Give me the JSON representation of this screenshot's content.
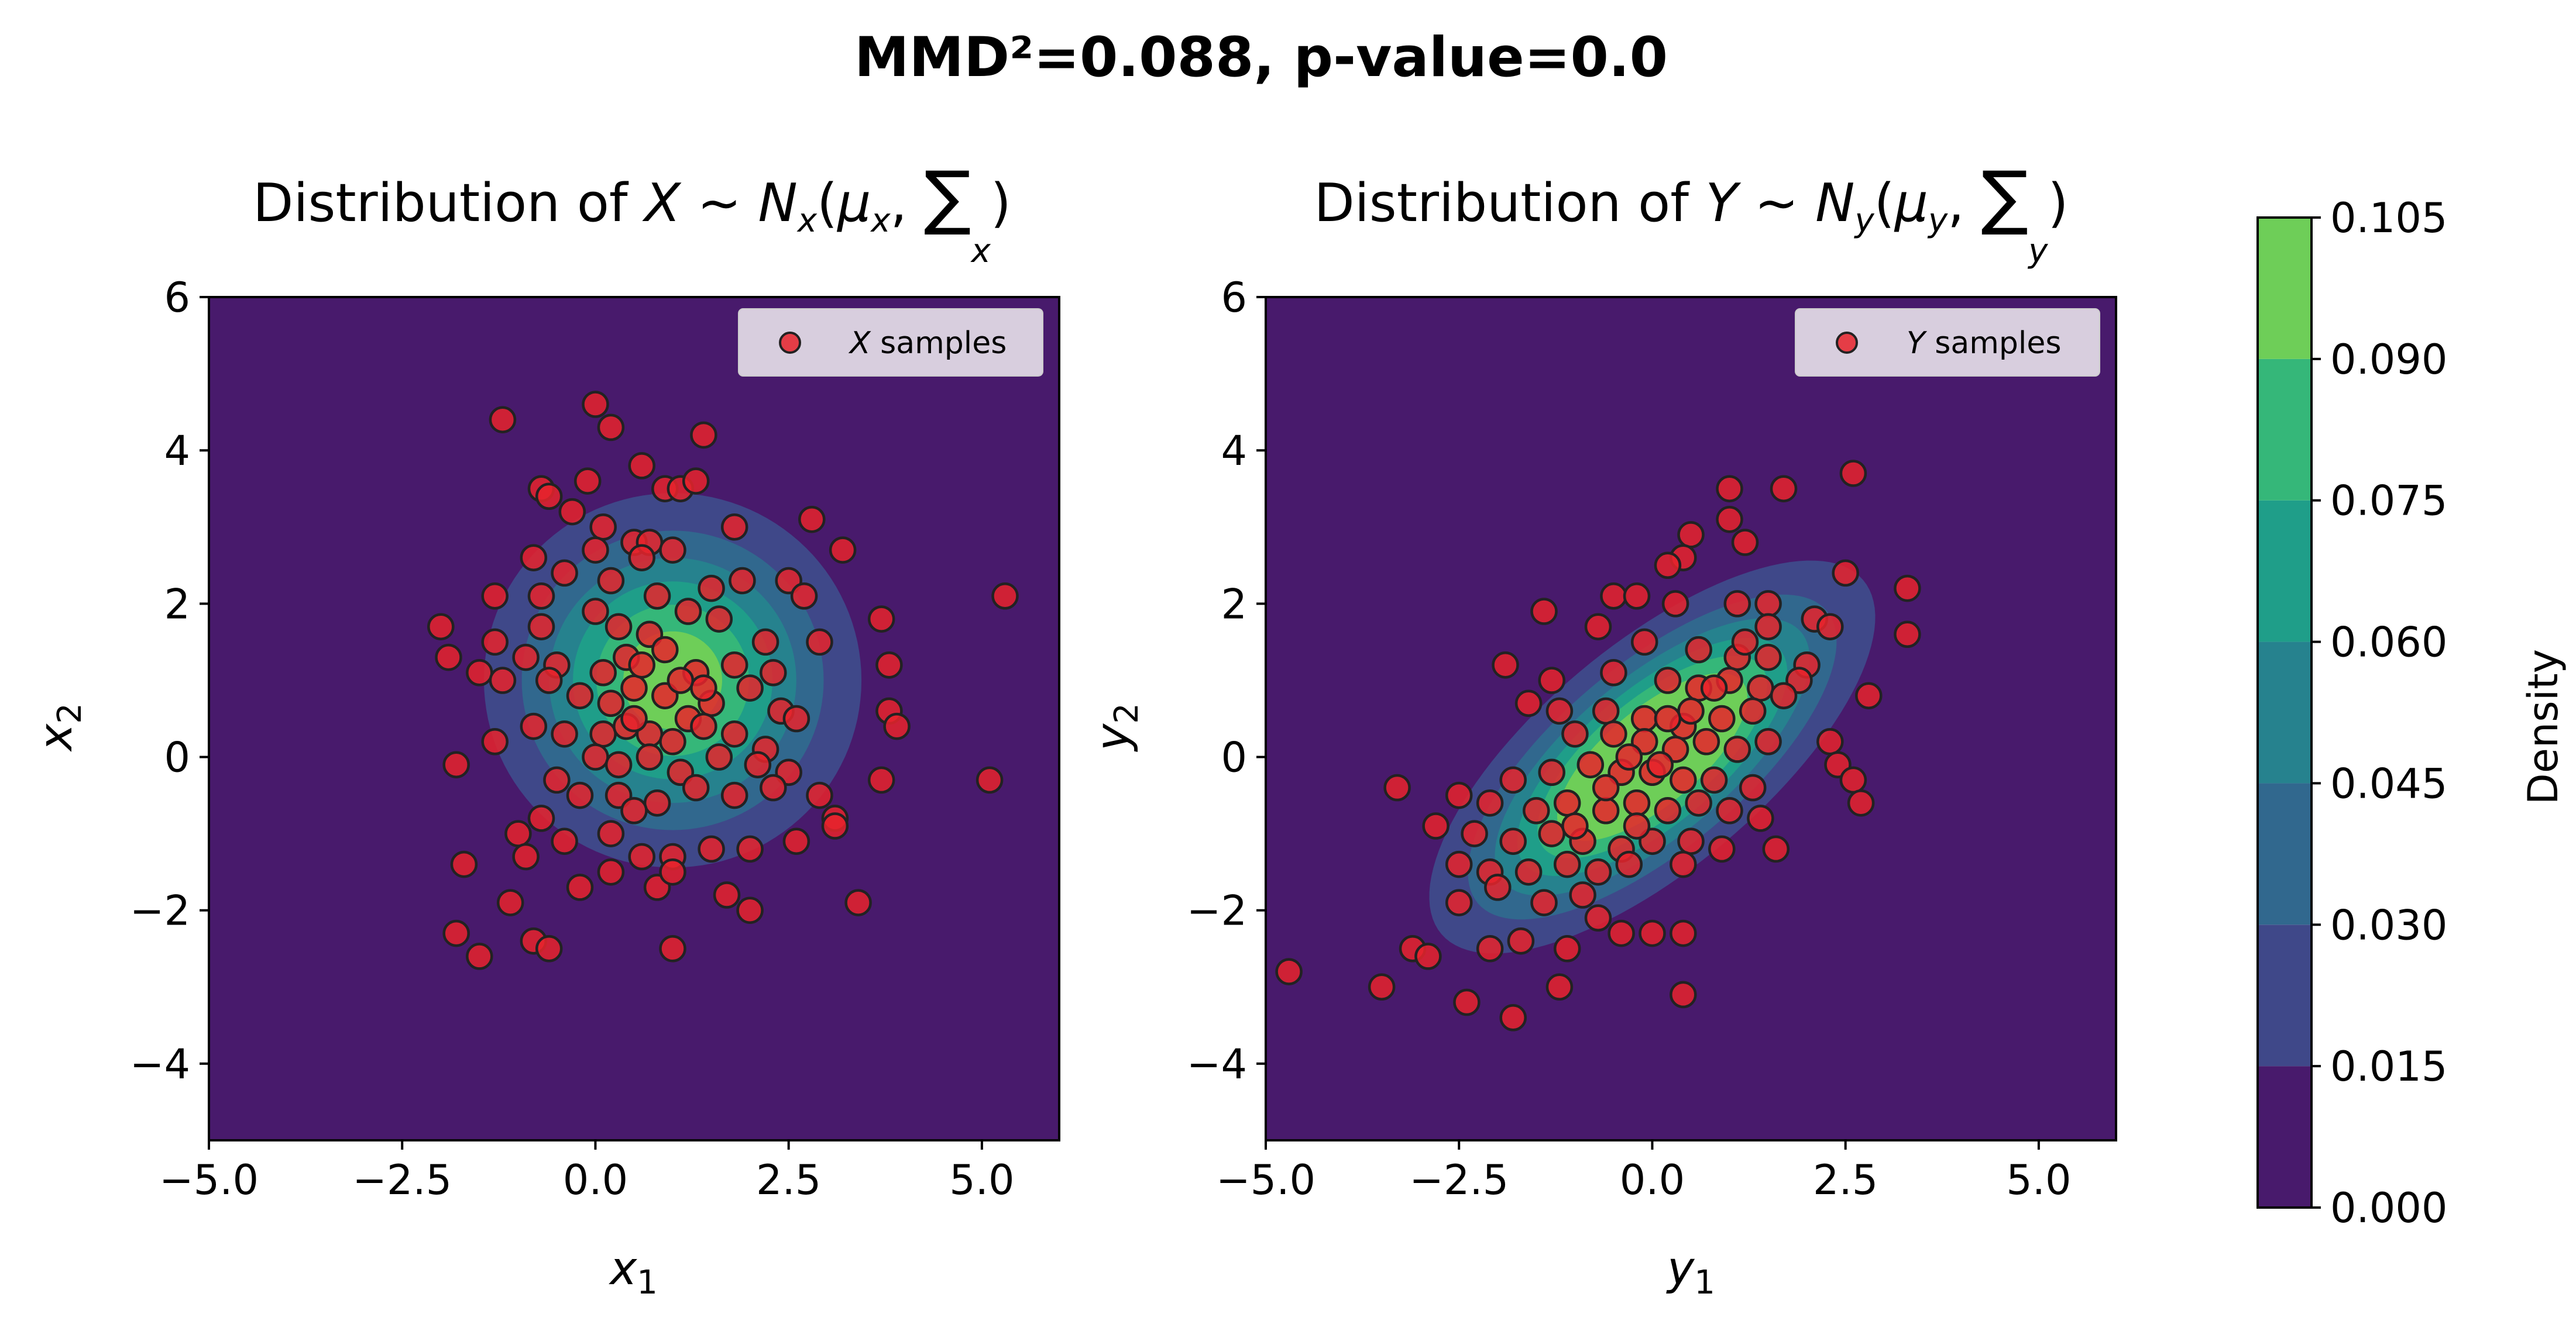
{
  "suptitle": "MMD²=0.088, p-value=0.0",
  "colorbar": {
    "label": "Density",
    "levels": [
      0.0,
      0.015,
      0.03,
      0.045,
      0.06,
      0.075,
      0.09,
      0.105
    ],
    "tick_labels": [
      "0.000",
      "0.015",
      "0.030",
      "0.045",
      "0.060",
      "0.075",
      "0.090",
      "0.105"
    ],
    "colors": [
      "#481a6c",
      "#3f4889",
      "#31688e",
      "#26828e",
      "#1f9e89",
      "#35b779",
      "#6ece58",
      "#c8e020"
    ]
  },
  "colors": {
    "sample_fill": "#e8232b",
    "sample_edge": "#222222",
    "legend_bg": "#d8cede"
  },
  "chart_data": [
    {
      "type": "scatter",
      "title_parts": {
        "pre": "Distribution of ",
        "var": "X",
        "dist": "N",
        "dsub": "x",
        "mu": "μ",
        "musub": "x",
        "sigma": "∑",
        "sigsub": "x"
      },
      "xlabel": {
        "var": "x",
        "sub": "1"
      },
      "ylabel": {
        "var": "x",
        "sub": "2"
      },
      "xlim": [
        -5,
        6
      ],
      "ylim": [
        -5,
        6
      ],
      "xticks": [
        -5.0,
        -2.5,
        0.0,
        2.5,
        5.0
      ],
      "xtick_labels": [
        "−5.0",
        "−2.5",
        "0.0",
        "2.5",
        "5.0"
      ],
      "yticks": [
        -4,
        -2,
        0,
        2,
        4,
        6
      ],
      "ytick_labels": [
        "−4",
        "−2",
        "0",
        "2",
        "4",
        "6"
      ],
      "legend": {
        "var": "X",
        "text": " samples",
        "position": "upper right"
      },
      "density": {
        "mean": [
          1.0,
          1.0
        ],
        "cov": [
          [
            1.55,
            0.0
          ],
          [
            0.0,
            1.55
          ]
        ]
      },
      "series": [
        {
          "name": "X samples",
          "points": [
            [
              -1.2,
              4.4
            ],
            [
              0.0,
              4.6
            ],
            [
              0.2,
              4.3
            ],
            [
              1.4,
              4.2
            ],
            [
              0.6,
              3.8
            ],
            [
              -0.7,
              3.5
            ],
            [
              -0.6,
              3.4
            ],
            [
              -0.1,
              3.6
            ],
            [
              0.9,
              3.5
            ],
            [
              1.1,
              3.5
            ],
            [
              1.3,
              3.6
            ],
            [
              -0.3,
              3.2
            ],
            [
              0.1,
              3.0
            ],
            [
              0.5,
              2.8
            ],
            [
              0.7,
              2.8
            ],
            [
              1.0,
              2.7
            ],
            [
              1.8,
              3.0
            ],
            [
              2.8,
              3.1
            ],
            [
              3.2,
              2.7
            ],
            [
              -0.8,
              2.6
            ],
            [
              -0.4,
              2.4
            ],
            [
              0.2,
              2.3
            ],
            [
              0.0,
              2.7
            ],
            [
              0.6,
              2.6
            ],
            [
              1.9,
              2.3
            ],
            [
              2.5,
              2.3
            ],
            [
              -1.3,
              2.1
            ],
            [
              -0.7,
              2.1
            ],
            [
              0.8,
              2.1
            ],
            [
              1.5,
              2.2
            ],
            [
              2.7,
              2.1
            ],
            [
              3.7,
              1.8
            ],
            [
              -2.0,
              1.7
            ],
            [
              -1.3,
              1.5
            ],
            [
              -0.7,
              1.7
            ],
            [
              0.0,
              1.9
            ],
            [
              0.3,
              1.7
            ],
            [
              0.7,
              1.6
            ],
            [
              1.2,
              1.9
            ],
            [
              1.6,
              1.8
            ],
            [
              2.2,
              1.5
            ],
            [
              2.9,
              1.5
            ],
            [
              5.3,
              2.1
            ],
            [
              -1.9,
              1.3
            ],
            [
              -1.5,
              1.1
            ],
            [
              -1.2,
              1.0
            ],
            [
              -0.9,
              1.3
            ],
            [
              -0.5,
              1.2
            ],
            [
              0.1,
              1.1
            ],
            [
              0.4,
              1.3
            ],
            [
              0.9,
              1.4
            ],
            [
              1.3,
              1.1
            ],
            [
              1.8,
              1.2
            ],
            [
              2.3,
              1.1
            ],
            [
              3.8,
              1.2
            ],
            [
              -0.6,
              1.0
            ],
            [
              -0.2,
              0.8
            ],
            [
              0.2,
              0.7
            ],
            [
              0.5,
              0.9
            ],
            [
              0.9,
              0.8
            ],
            [
              1.2,
              0.5
            ],
            [
              1.5,
              0.7
            ],
            [
              2.0,
              0.9
            ],
            [
              2.4,
              0.6
            ],
            [
              3.8,
              0.6
            ],
            [
              -1.3,
              0.2
            ],
            [
              -0.8,
              0.4
            ],
            [
              -0.4,
              0.3
            ],
            [
              0.1,
              0.3
            ],
            [
              0.4,
              0.4
            ],
            [
              0.7,
              0.3
            ],
            [
              1.0,
              0.2
            ],
            [
              1.4,
              0.4
            ],
            [
              1.8,
              0.3
            ],
            [
              2.2,
              0.1
            ],
            [
              2.6,
              0.5
            ],
            [
              3.9,
              0.4
            ],
            [
              -1.8,
              -0.1
            ],
            [
              -0.5,
              -0.3
            ],
            [
              0.0,
              0.0
            ],
            [
              0.3,
              -0.1
            ],
            [
              0.7,
              0.0
            ],
            [
              1.1,
              -0.2
            ],
            [
              1.6,
              0.0
            ],
            [
              2.1,
              -0.1
            ],
            [
              2.5,
              -0.2
            ],
            [
              3.7,
              -0.3
            ],
            [
              -0.7,
              -0.8
            ],
            [
              -0.2,
              -0.5
            ],
            [
              0.3,
              -0.5
            ],
            [
              0.8,
              -0.6
            ],
            [
              1.3,
              -0.4
            ],
            [
              1.8,
              -0.5
            ],
            [
              2.3,
              -0.4
            ],
            [
              2.9,
              -0.5
            ],
            [
              3.1,
              -0.8
            ],
            [
              5.1,
              -0.3
            ],
            [
              -1.0,
              -1.0
            ],
            [
              -0.4,
              -1.1
            ],
            [
              0.2,
              -1.0
            ],
            [
              0.5,
              -0.7
            ],
            [
              0.6,
              -1.3
            ],
            [
              1.0,
              -1.3
            ],
            [
              1.5,
              -1.2
            ],
            [
              2.0,
              -1.2
            ],
            [
              2.6,
              -1.1
            ],
            [
              3.1,
              -0.9
            ],
            [
              -1.7,
              -1.4
            ],
            [
              -0.9,
              -1.3
            ],
            [
              -0.2,
              -1.7
            ],
            [
              0.2,
              -1.5
            ],
            [
              0.8,
              -1.7
            ],
            [
              1.0,
              -1.5
            ],
            [
              1.7,
              -1.8
            ],
            [
              2.0,
              -2.0
            ],
            [
              3.4,
              -1.9
            ],
            [
              -1.1,
              -1.9
            ],
            [
              -1.8,
              -2.3
            ],
            [
              -1.5,
              -2.6
            ],
            [
              -0.8,
              -2.4
            ],
            [
              -0.6,
              -2.5
            ],
            [
              1.0,
              -2.5
            ],
            [
              0.5,
              0.5
            ],
            [
              1.4,
              0.9
            ],
            [
              0.6,
              1.2
            ],
            [
              1.1,
              1.0
            ]
          ]
        }
      ]
    },
    {
      "type": "scatter",
      "title_parts": {
        "pre": "Distribution of ",
        "var": "Y",
        "dist": "N",
        "dsub": "y",
        "mu": "μ",
        "musub": "y",
        "sigma": "∑",
        "sigsub": "y"
      },
      "xlabel": {
        "var": "y",
        "sub": "1"
      },
      "ylabel": {
        "var": "y",
        "sub": "2"
      },
      "xlim": [
        -5,
        6
      ],
      "ylim": [
        -5,
        6
      ],
      "xticks": [
        -5.0,
        -2.5,
        0.0,
        2.5,
        5.0
      ],
      "xtick_labels": [
        "−5.0",
        "−2.5",
        "0.0",
        "2.5",
        "5.0"
      ],
      "yticks": [
        -4,
        -2,
        0,
        2,
        4,
        6
      ],
      "ytick_labels": [
        "−4",
        "−2",
        "0",
        "2",
        "4",
        "6"
      ],
      "legend": {
        "var": "Y",
        "text": " samples",
        "position": "upper right"
      },
      "density": {
        "mean": [
          0.0,
          0.0
        ],
        "cov": [
          [
            1.9,
            1.2
          ],
          [
            1.2,
            1.5
          ]
        ]
      },
      "series": [
        {
          "name": "Y samples",
          "points": [
            [
              2.6,
              3.7
            ],
            [
              1.7,
              3.5
            ],
            [
              1.0,
              3.5
            ],
            [
              0.5,
              2.9
            ],
            [
              1.0,
              3.1
            ],
            [
              1.2,
              2.8
            ],
            [
              2.5,
              2.4
            ],
            [
              3.3,
              2.2
            ],
            [
              0.4,
              2.6
            ],
            [
              0.2,
              2.5
            ],
            [
              -0.5,
              2.1
            ],
            [
              -0.2,
              2.1
            ],
            [
              0.3,
              2.0
            ],
            [
              1.1,
              2.0
            ],
            [
              1.5,
              2.0
            ],
            [
              -1.4,
              1.9
            ],
            [
              -0.7,
              1.7
            ],
            [
              1.5,
              1.7
            ],
            [
              2.1,
              1.8
            ],
            [
              2.3,
              1.7
            ],
            [
              3.3,
              1.6
            ],
            [
              -1.9,
              1.2
            ],
            [
              -0.1,
              1.5
            ],
            [
              0.6,
              1.4
            ],
            [
              1.1,
              1.3
            ],
            [
              1.5,
              1.3
            ],
            [
              2.0,
              1.2
            ],
            [
              -1.3,
              1.0
            ],
            [
              -0.5,
              1.1
            ],
            [
              0.2,
              1.0
            ],
            [
              0.6,
              0.9
            ],
            [
              1.0,
              1.0
            ],
            [
              1.4,
              0.9
            ],
            [
              1.9,
              1.0
            ],
            [
              2.8,
              0.8
            ],
            [
              -1.6,
              0.7
            ],
            [
              -1.2,
              0.6
            ],
            [
              -0.6,
              0.6
            ],
            [
              -0.1,
              0.5
            ],
            [
              0.4,
              0.4
            ],
            [
              0.9,
              0.5
            ],
            [
              1.3,
              0.6
            ],
            [
              1.7,
              0.8
            ],
            [
              -1.0,
              0.3
            ],
            [
              -0.5,
              0.3
            ],
            [
              -0.1,
              0.2
            ],
            [
              0.3,
              0.1
            ],
            [
              0.7,
              0.2
            ],
            [
              1.1,
              0.1
            ],
            [
              1.5,
              0.2
            ],
            [
              2.3,
              0.2
            ],
            [
              -3.3,
              -0.4
            ],
            [
              -1.8,
              -0.3
            ],
            [
              -1.3,
              -0.2
            ],
            [
              -0.8,
              -0.1
            ],
            [
              -0.4,
              -0.2
            ],
            [
              0.0,
              -0.2
            ],
            [
              0.4,
              -0.3
            ],
            [
              0.8,
              -0.3
            ],
            [
              1.3,
              -0.4
            ],
            [
              2.4,
              -0.1
            ],
            [
              2.6,
              -0.3
            ],
            [
              2.7,
              -0.6
            ],
            [
              -2.5,
              -0.5
            ],
            [
              -2.1,
              -0.6
            ],
            [
              -1.5,
              -0.7
            ],
            [
              -1.1,
              -0.6
            ],
            [
              -0.6,
              -0.7
            ],
            [
              -0.2,
              -0.6
            ],
            [
              0.2,
              -0.7
            ],
            [
              0.6,
              -0.6
            ],
            [
              1.0,
              -0.7
            ],
            [
              1.4,
              -0.8
            ],
            [
              -2.8,
              -0.9
            ],
            [
              -2.3,
              -1.0
            ],
            [
              -1.8,
              -1.1
            ],
            [
              -1.3,
              -1.0
            ],
            [
              -0.9,
              -1.1
            ],
            [
              -0.4,
              -1.2
            ],
            [
              0.0,
              -1.1
            ],
            [
              0.5,
              -1.1
            ],
            [
              0.9,
              -1.2
            ],
            [
              1.6,
              -1.2
            ],
            [
              -2.5,
              -1.4
            ],
            [
              -2.1,
              -1.5
            ],
            [
              -1.6,
              -1.5
            ],
            [
              -1.1,
              -1.4
            ],
            [
              -0.7,
              -1.5
            ],
            [
              -0.3,
              -1.4
            ],
            [
              0.4,
              -1.4
            ],
            [
              -2.5,
              -1.9
            ],
            [
              -2.0,
              -1.7
            ],
            [
              -1.4,
              -1.9
            ],
            [
              -0.9,
              -1.8
            ],
            [
              -0.7,
              -2.1
            ],
            [
              -0.4,
              -2.3
            ],
            [
              0.0,
              -2.3
            ],
            [
              0.4,
              -2.3
            ],
            [
              -2.1,
              -2.5
            ],
            [
              -1.7,
              -2.4
            ],
            [
              -1.1,
              -2.5
            ],
            [
              -3.1,
              -2.5
            ],
            [
              -2.9,
              -2.6
            ],
            [
              -4.7,
              -2.8
            ],
            [
              -3.5,
              -3.0
            ],
            [
              -2.4,
              -3.2
            ],
            [
              -1.8,
              -3.4
            ],
            [
              -1.2,
              -3.0
            ],
            [
              0.4,
              -3.1
            ],
            [
              -0.3,
              0.0
            ],
            [
              0.1,
              -0.1
            ],
            [
              -0.6,
              -0.4
            ],
            [
              0.5,
              0.6
            ],
            [
              -1.0,
              -0.9
            ],
            [
              0.8,
              0.9
            ],
            [
              0.2,
              0.5
            ],
            [
              -0.2,
              -0.9
            ],
            [
              1.2,
              1.5
            ]
          ]
        }
      ]
    }
  ]
}
